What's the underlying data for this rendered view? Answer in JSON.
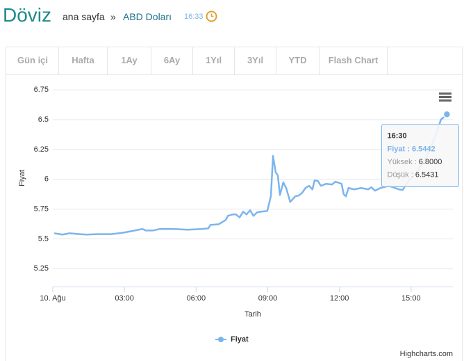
{
  "header": {
    "title": "Döviz",
    "breadcrumb": [
      "ana sayfa",
      "ABD Doları"
    ],
    "separator": "»",
    "time": "16:33"
  },
  "tabs": [
    "Gün içi",
    "Hafta",
    "1Ay",
    "6Ay",
    "1Yıl",
    "3Yıl",
    "YTD",
    "Flash Chart"
  ],
  "chart_data": {
    "type": "line",
    "x_label": "Tarih",
    "y_label": "Fiyat",
    "x": [
      0.06,
      0.41,
      0.7,
      1.13,
      1.42,
      1.86,
      2.44,
      2.88,
      3.17,
      3.6,
      3.75,
      3.9,
      4.19,
      4.48,
      5.06,
      5.64,
      6.22,
      6.51,
      6.6,
      6.95,
      7.24,
      7.33,
      7.53,
      7.67,
      7.82,
      7.97,
      8.11,
      8.26,
      8.4,
      8.55,
      8.69,
      8.98,
      9.13,
      9.22,
      9.33,
      9.42,
      9.51,
      9.65,
      9.77,
      9.94,
      10.15,
      10.29,
      10.44,
      10.58,
      10.73,
      10.87,
      10.96,
      11.1,
      11.22,
      11.45,
      11.69,
      11.83,
      12.09,
      12.18,
      12.27,
      12.38,
      12.62,
      12.91,
      13.2,
      13.34,
      13.49,
      13.72,
      14.07,
      14.5,
      14.65,
      14.8,
      15.23,
      15.58,
      15.81,
      16.05,
      16.25,
      16.5
    ],
    "series": [
      {
        "name": "Fiyat",
        "color": "#7cb5ec",
        "values": [
          5.547,
          5.536,
          5.547,
          5.54,
          5.536,
          5.54,
          5.54,
          5.55,
          5.56,
          5.577,
          5.583,
          5.57,
          5.57,
          5.583,
          5.583,
          5.577,
          5.583,
          5.588,
          5.617,
          5.623,
          5.658,
          5.693,
          5.705,
          5.705,
          5.68,
          5.728,
          5.705,
          5.74,
          5.693,
          5.722,
          5.728,
          5.734,
          5.857,
          6.195,
          6.06,
          6.032,
          5.868,
          5.974,
          5.927,
          5.81,
          5.857,
          5.863,
          5.886,
          5.927,
          5.945,
          5.915,
          5.99,
          5.985,
          5.945,
          5.962,
          5.956,
          5.98,
          5.962,
          5.874,
          5.857,
          5.927,
          5.915,
          5.927,
          5.915,
          5.933,
          5.904,
          5.927,
          5.945,
          5.915,
          5.91,
          5.962,
          6.06,
          6.16,
          6.265,
          6.38,
          6.5,
          6.5442
        ]
      }
    ],
    "xlim": [
      0,
      16.75
    ],
    "xticks": [
      {
        "value": 0,
        "label": "10. Ağu"
      },
      {
        "value": 3,
        "label": "03:00"
      },
      {
        "value": 6,
        "label": "06:00"
      },
      {
        "value": 9,
        "label": "09:00"
      },
      {
        "value": 12,
        "label": "12:00"
      },
      {
        "value": 15,
        "label": "15:00"
      }
    ],
    "ylim": [
      5.1,
      6.85
    ],
    "yticks": [
      5.25,
      5.5,
      5.75,
      6,
      6.25,
      6.5,
      6.75
    ],
    "grid": true,
    "legend": "bottom",
    "tooltip": {
      "title": "16:30",
      "separator": " : ",
      "rows": [
        {
          "label": "Fiyat",
          "value": "6.5442"
        },
        {
          "label": "Yüksek",
          "value": "6.8000"
        },
        {
          "label": "Düşük",
          "value": "6.5431"
        }
      ]
    },
    "credits": "Highcharts.com"
  }
}
